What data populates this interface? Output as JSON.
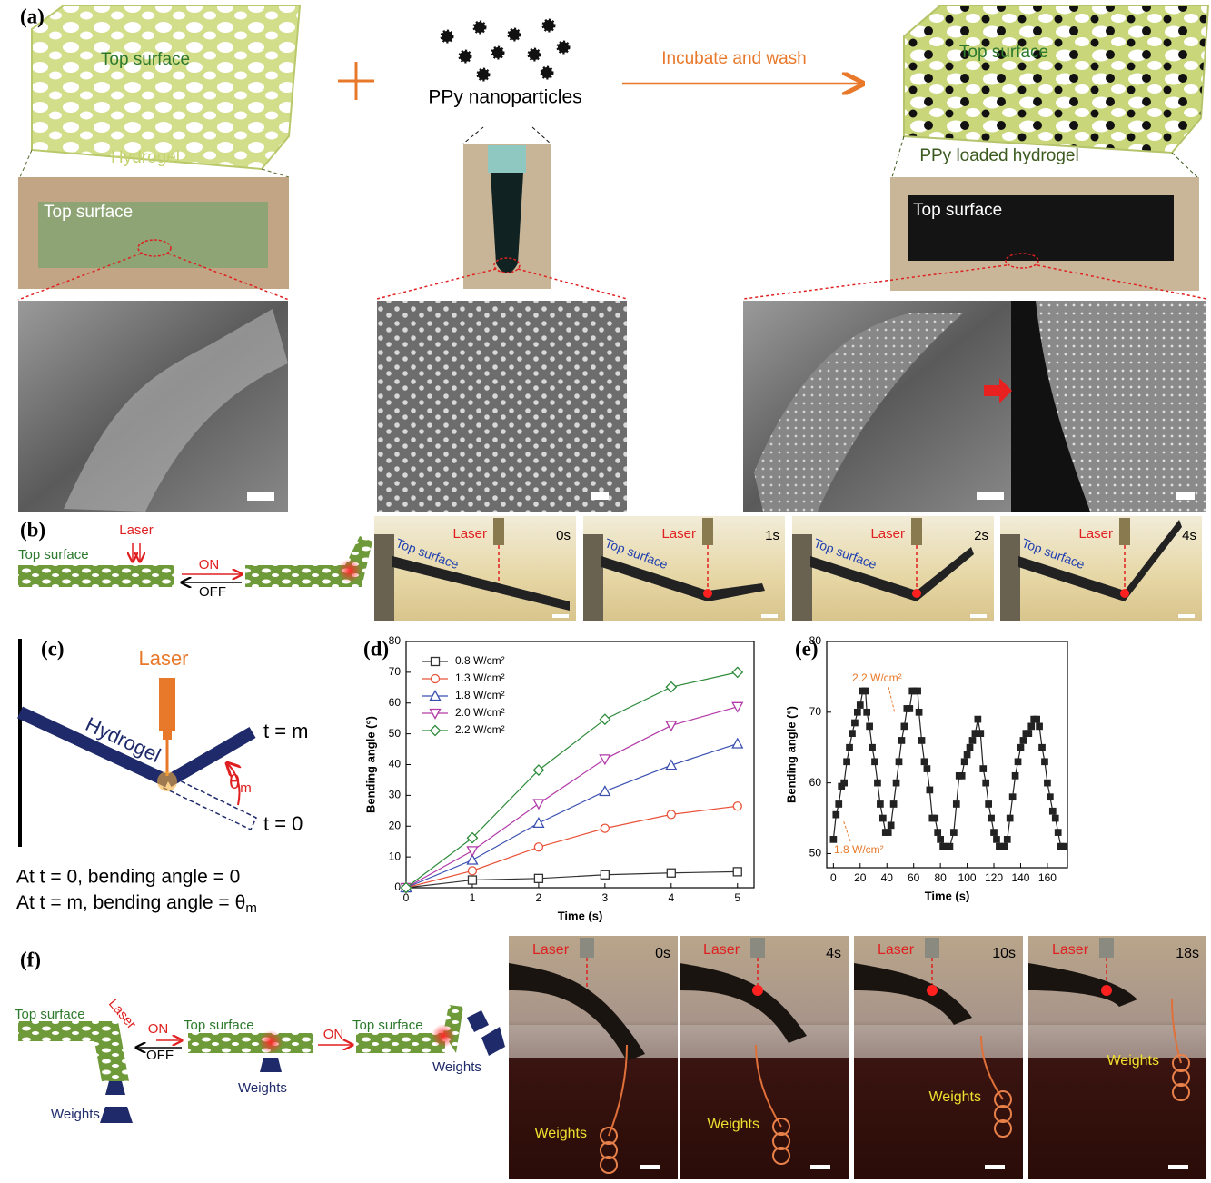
{
  "panel_a": {
    "label": "(a)",
    "hydrogel_sketch": {
      "surface": "Top surface",
      "name": "Hydrogel"
    },
    "nanoparticles": "PPy nanoparticles",
    "process": "Incubate and wash",
    "loaded_sketch": {
      "surface": "Top surface",
      "name": "PPy loaded hydrogel"
    },
    "photo_left": "Top surface",
    "photo_right": "Top surface"
  },
  "panel_b": {
    "label": "(b)",
    "sketch": {
      "laser": "Laser",
      "surface": "Top surface",
      "on": "ON",
      "off": "OFF"
    },
    "frames": [
      {
        "laser": "Laser",
        "time": "0s",
        "surface": "Top surface"
      },
      {
        "laser": "Laser",
        "time": "1s",
        "surface": "Top surface"
      },
      {
        "laser": "Laser",
        "time": "2s",
        "surface": "Top surface"
      },
      {
        "laser": "Laser",
        "time": "4s",
        "surface": "Top surface"
      }
    ]
  },
  "panel_c": {
    "label": "(c)",
    "laser": "Laser",
    "hydrogel": "Hydrogel",
    "t_m": "t = m",
    "t_0": "t = 0",
    "angle": {
      "symbol": "θ",
      "subscript": "m"
    },
    "captions": [
      {
        "text": "At t = 0, bending angle = 0"
      },
      {
        "text": "At t = m, bending angle =",
        "symbol": "θ",
        "subscript": "m"
      }
    ]
  },
  "panel_f": {
    "label": "(f)",
    "sketch": {
      "surface_1": "Top surface",
      "laser": "Laser",
      "on_1": "ON",
      "off": "OFF",
      "surface_2": "Top surface",
      "on_2": "ON",
      "surface_3": "Top surface",
      "weights_1": "Weights",
      "weights_2": "Weights",
      "weights_3": "Weights"
    },
    "frames": [
      {
        "laser": "Laser",
        "time": "0s",
        "weights": "Weights"
      },
      {
        "laser": "Laser",
        "time": "4s",
        "weights": "Weights"
      },
      {
        "laser": "Laser",
        "time": "10s",
        "weights": "Weights"
      },
      {
        "laser": "Laser",
        "time": "18s",
        "weights": "Weights"
      }
    ]
  },
  "chart_data": [
    {
      "type": "line",
      "panel_label": "(d)",
      "x_label": "Time (s)",
      "y_label": "Bending angle (°)",
      "x": [
        0,
        1,
        2,
        3,
        4,
        5
      ],
      "xlim": [
        0,
        5.25
      ],
      "xticks": [
        0,
        1,
        2,
        3,
        4,
        5
      ],
      "ylim": [
        0,
        80
      ],
      "yticks": [
        0,
        10,
        20,
        30,
        40,
        50,
        60,
        70,
        80
      ],
      "legend": "top-left",
      "series": [
        {
          "name": "0.8 W/cm²",
          "color": "#333333",
          "marker": "square",
          "values": [
            0,
            2.5,
            3,
            4.2,
            4.8,
            5.2
          ]
        },
        {
          "name": "1.3 W/cm²",
          "color": "#e8533a",
          "marker": "circle",
          "values": [
            0,
            5.5,
            13.2,
            19.3,
            23.8,
            26.5
          ]
        },
        {
          "name": "1.8 W/cm²",
          "color": "#3a4fb0",
          "marker": "triangle-up",
          "values": [
            0,
            9,
            21,
            31.3,
            39.8,
            46.8
          ]
        },
        {
          "name": "2.0 W/cm²",
          "color": "#b23aa8",
          "marker": "triangle-down",
          "values": [
            0,
            12,
            27.3,
            41.8,
            52.7,
            58.8
          ]
        },
        {
          "name": "2.2 W/cm²",
          "color": "#2e8b3a",
          "marker": "diamond",
          "values": [
            0,
            16.2,
            38.2,
            54.7,
            65.2,
            70
          ]
        }
      ]
    },
    {
      "type": "line",
      "panel_label": "(e)",
      "x_label": "Time (s)",
      "y_label": "Bending angle (°)",
      "annotations": [
        "2.2 W/cm²",
        "1.8 W/cm²"
      ],
      "x": [
        0,
        2,
        4,
        6,
        8,
        10,
        12,
        14,
        16,
        18,
        20,
        22,
        24,
        25,
        27,
        29,
        31,
        33,
        35,
        37,
        39,
        41,
        43,
        45,
        47,
        49,
        51,
        53,
        55,
        57,
        59,
        61,
        63,
        64,
        66,
        68,
        70,
        72,
        74,
        76,
        78,
        80,
        82,
        84,
        87,
        90,
        92,
        94,
        96,
        98,
        100,
        102,
        104,
        106,
        108,
        110,
        112,
        114,
        116,
        118,
        120,
        122,
        124,
        126,
        128,
        130,
        132,
        134,
        136,
        138,
        140,
        142,
        144,
        146,
        148,
        150,
        152,
        154,
        156,
        158,
        160,
        162,
        164,
        166,
        168,
        170,
        172
      ],
      "xlim": [
        -5,
        175
      ],
      "xticks": [
        0,
        20,
        40,
        60,
        80,
        100,
        120,
        140,
        160
      ],
      "ylim": [
        48,
        80
      ],
      "yticks": [
        50,
        60,
        70,
        80
      ],
      "series": [
        {
          "color": "#222222",
          "marker": "square-filled",
          "values": [
            52,
            55.5,
            57,
            59.5,
            60,
            63,
            65,
            67,
            68.5,
            70,
            71,
            73,
            73,
            70,
            68,
            65,
            63,
            60,
            57,
            55,
            53,
            53,
            54,
            57,
            60,
            63,
            66,
            68,
            70.5,
            70.5,
            73,
            73,
            73,
            70,
            66,
            63,
            62,
            59,
            55,
            55,
            53,
            52,
            51,
            51,
            51,
            53,
            57,
            61,
            61,
            63,
            64,
            65,
            66,
            67,
            69,
            67,
            62,
            60,
            57,
            55,
            53,
            52,
            51,
            51,
            51,
            52,
            55,
            58,
            61,
            63,
            65,
            66,
            67,
            67,
            68,
            69,
            69,
            68,
            65,
            63,
            60,
            58,
            56,
            55,
            53,
            51,
            51
          ]
        }
      ]
    }
  ]
}
